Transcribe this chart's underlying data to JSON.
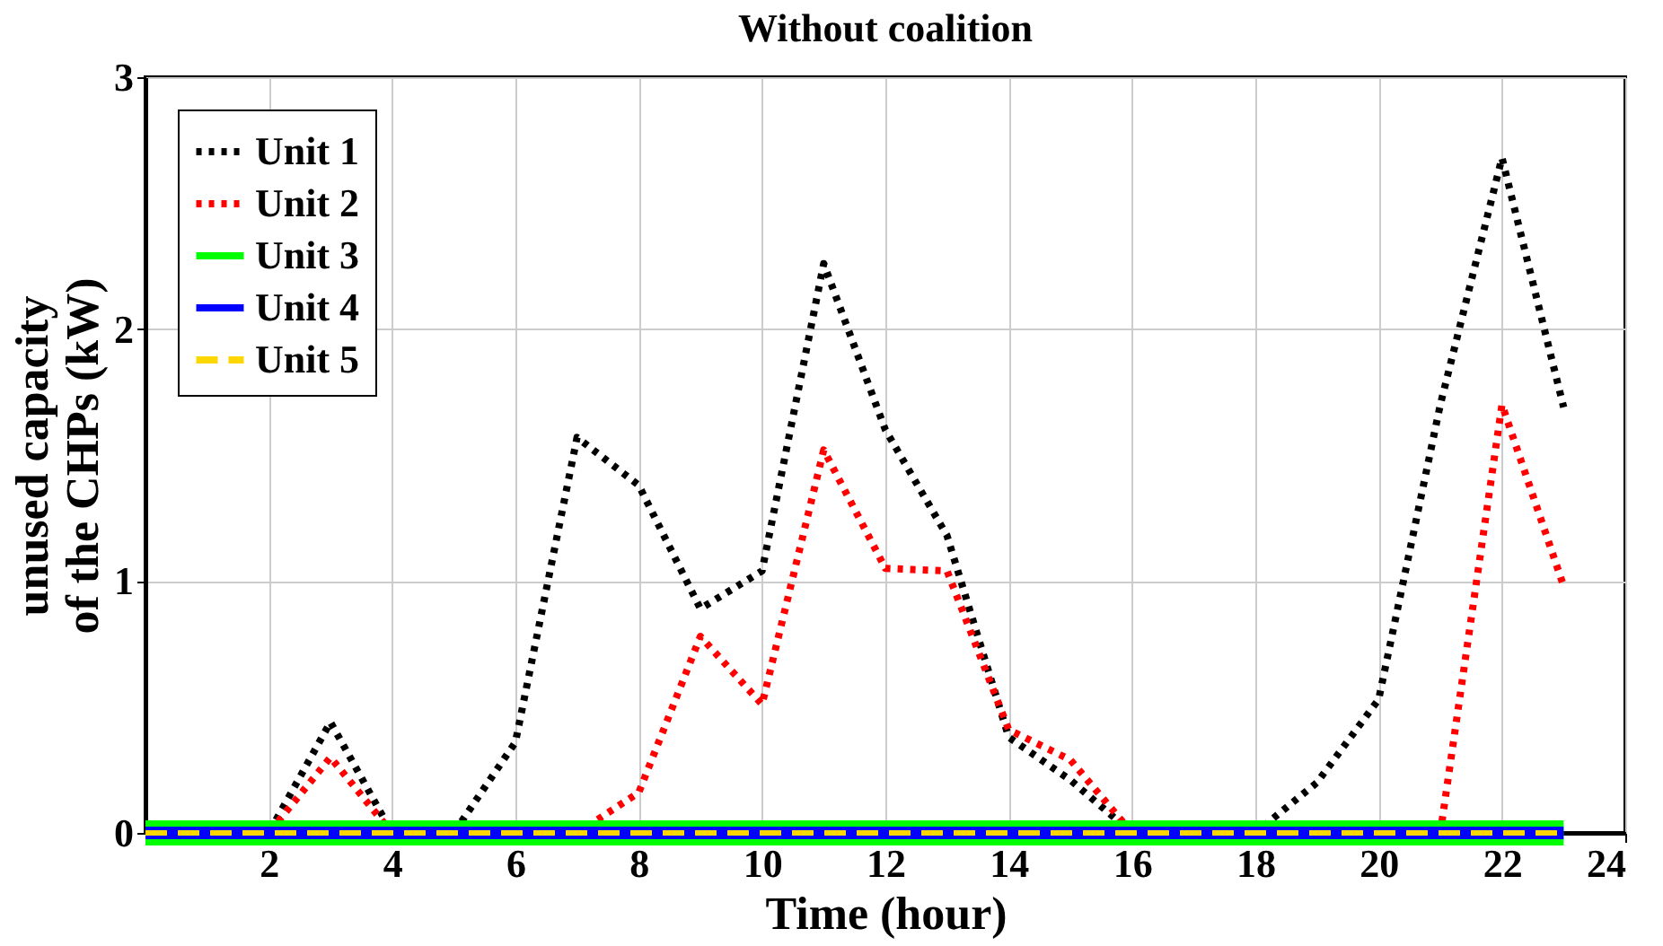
{
  "chart_data": {
    "type": "line",
    "title": "Without coalition",
    "xlabel": "Time (hour)",
    "ylabel": "unused capacity\nof the CHPs (kW)",
    "x": [
      0,
      1,
      2,
      3,
      4,
      5,
      6,
      7,
      8,
      9,
      10,
      11,
      12,
      13,
      14,
      15,
      16,
      17,
      18,
      19,
      20,
      21,
      22,
      23
    ],
    "series": [
      {
        "name": "Unit 1",
        "color": "#000000",
        "line_style": "dotted",
        "values": [
          0,
          0,
          0,
          0.44,
          0,
          0,
          0.36,
          1.57,
          1.38,
          0.89,
          1.04,
          2.26,
          1.6,
          1.18,
          0.38,
          0.21,
          0,
          0,
          0,
          0.2,
          0.53,
          1.7,
          2.68,
          1.69
        ]
      },
      {
        "name": "Unit 2",
        "color": "#ff0000",
        "line_style": "dotted",
        "values": [
          0,
          0,
          0,
          0.3,
          0,
          0,
          0,
          0,
          0.16,
          0.78,
          0.51,
          1.52,
          1.05,
          1.04,
          0.41,
          0.29,
          0,
          0,
          0,
          0,
          0,
          0,
          1.7,
          0.98
        ]
      },
      {
        "name": "Unit 3",
        "color": "#00ff00",
        "line_style": "solid",
        "values": [
          0,
          0,
          0,
          0,
          0,
          0,
          0,
          0,
          0,
          0,
          0,
          0,
          0,
          0,
          0,
          0,
          0,
          0,
          0,
          0,
          0,
          0,
          0,
          0
        ]
      },
      {
        "name": "Unit 4",
        "color": "#0000ff",
        "line_style": "solid",
        "values": [
          0,
          0,
          0,
          0,
          0,
          0,
          0,
          0,
          0,
          0,
          0,
          0,
          0,
          0,
          0,
          0,
          0,
          0,
          0,
          0,
          0,
          0,
          0,
          0
        ]
      },
      {
        "name": "Unit 5",
        "color": "#ffd700",
        "line_style": "dashed",
        "values": [
          0,
          0,
          0,
          0,
          0,
          0,
          0,
          0,
          0,
          0,
          0,
          0,
          0,
          0,
          0,
          0,
          0,
          0,
          0,
          0,
          0,
          0,
          0,
          0
        ]
      }
    ],
    "xlim": [
      0,
      24
    ],
    "xticks": [
      {
        "value": 0,
        "label": null
      },
      2,
      4,
      6,
      8,
      10,
      12,
      14,
      16,
      18,
      20,
      22,
      24
    ],
    "ylim": [
      0,
      3
    ],
    "yticks": [
      0,
      1,
      2,
      3
    ],
    "grid": true,
    "legend": "top left"
  }
}
